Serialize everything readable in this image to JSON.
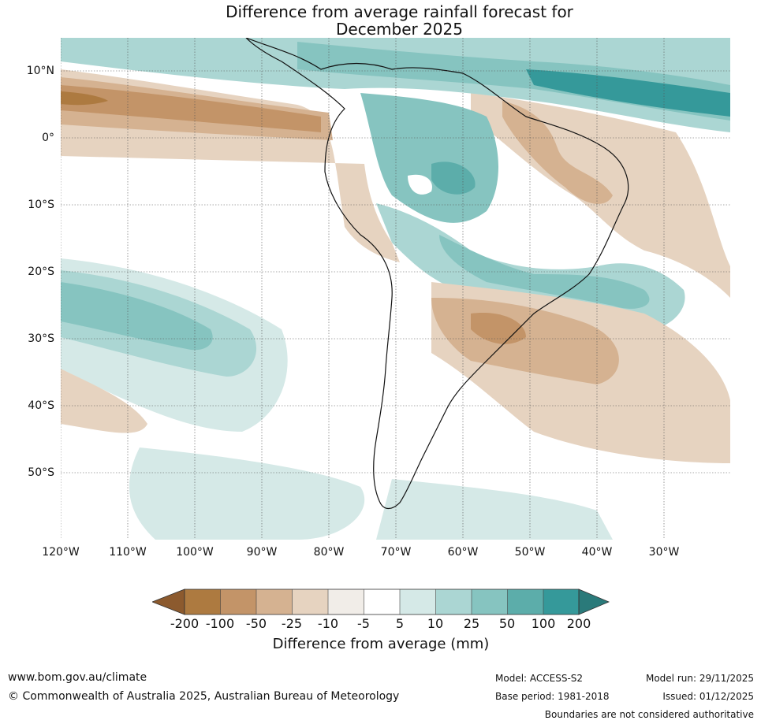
{
  "title": {
    "line1": "Difference from average rainfall forecast for",
    "line2": "December 2025"
  },
  "map": {
    "region": "South America",
    "lat_labels": [
      "10°N",
      "0°",
      "10°S",
      "20°S",
      "30°S",
      "40°S",
      "50°S"
    ],
    "lon_labels": [
      "120°W",
      "110°W",
      "100°W",
      "90°W",
      "80°W",
      "70°W",
      "60°W",
      "50°W",
      "40°W",
      "30°W"
    ]
  },
  "colorbar": {
    "ticks": [
      "-200",
      "-100",
      "-50",
      "-25",
      "-10",
      "-5",
      "5",
      "10",
      "25",
      "50",
      "100",
      "200"
    ],
    "colors": {
      "below_-200": "#8c5a2e",
      "-200_-100": "#ad7a40",
      "-100_-50": "#c39468",
      "-50_-25": "#d5b291",
      "-25_-10": "#e6d3c0",
      "-10_-5": "#f1ede8",
      "-5_5": "#ffffff",
      "5_10": "#d5e9e7",
      "10_25": "#abd6d3",
      "25_50": "#86c4c0",
      "50_100": "#5cadaa",
      "100_200": "#35999a",
      "above_200": "#2a7a7a"
    },
    "label": "Difference from average (mm)"
  },
  "footer": {
    "website": "www.bom.gov.au/climate",
    "copyright": "© Commonwealth of Australia 2025, Australian Bureau of Meteorology",
    "model": "Model: ACCESS-S2",
    "base_period": "Base period: 1981-2018",
    "model_run": "Model run: 29/11/2025",
    "issued": "Issued: 01/12/2025",
    "disclaimer": "Boundaries are not considered authoritative"
  }
}
